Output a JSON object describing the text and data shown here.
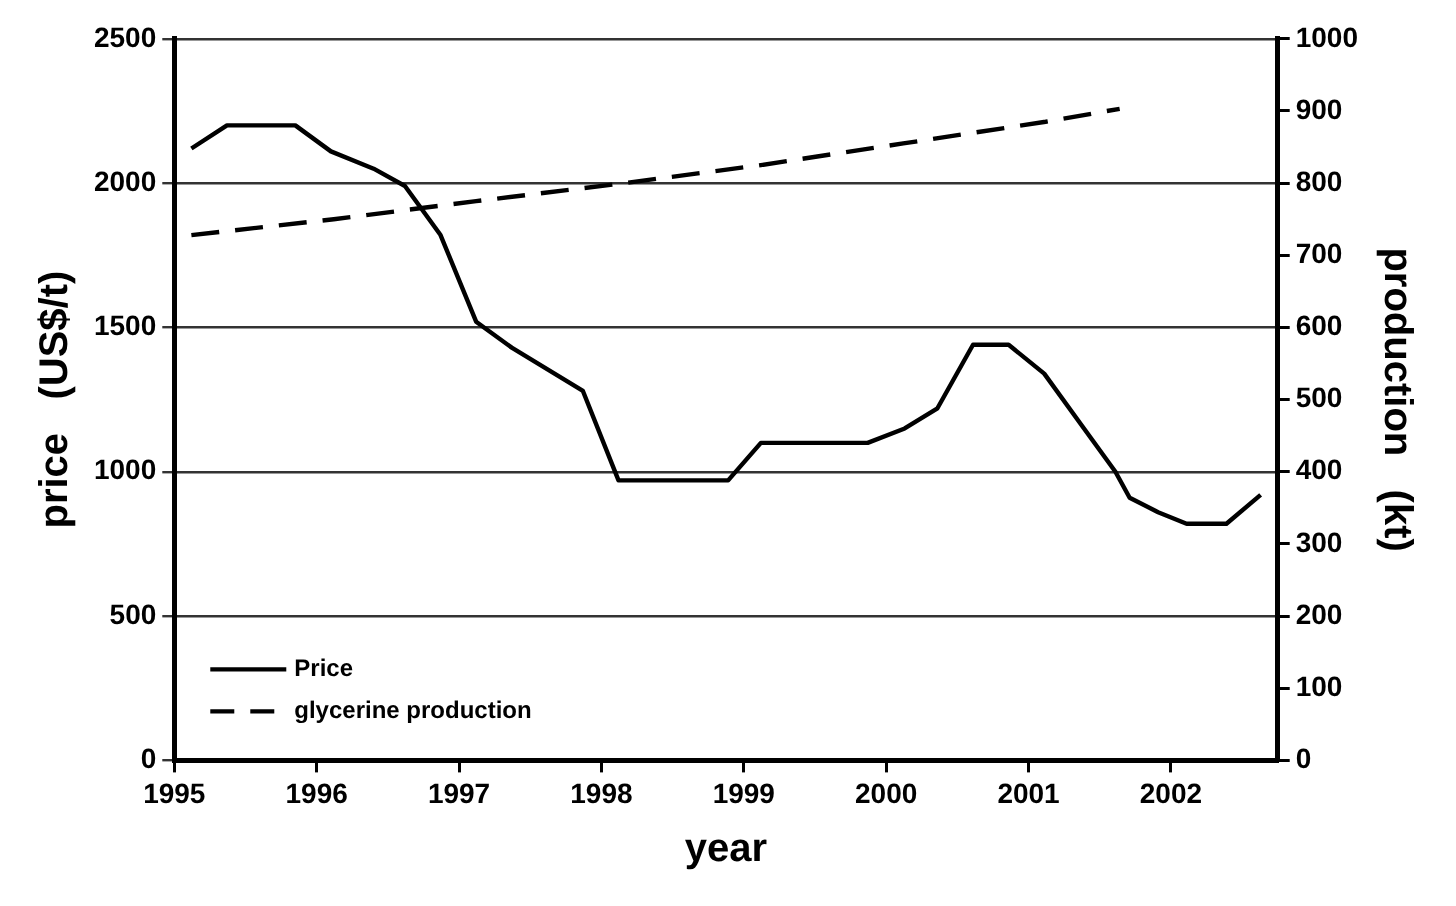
{
  "chart_data": {
    "type": "line",
    "xlabel": "year",
    "ylabel": "price   (US$/t)",
    "y2label": "production   (kt)",
    "xlim": [
      1995,
      2002.75
    ],
    "xticks": [
      1995,
      1996,
      1997,
      1998,
      1999,
      2000,
      2001,
      2002
    ],
    "ylim": [
      0,
      2500
    ],
    "yticks": [
      0,
      500,
      1000,
      1500,
      2000,
      2500
    ],
    "y2lim": [
      0,
      1000
    ],
    "y2ticks": [
      0,
      100,
      200,
      300,
      400,
      500,
      600,
      700,
      800,
      900,
      1000
    ],
    "grid": "y",
    "legend": "bottom left",
    "marker": "none",
    "series": [
      {
        "name": "Price",
        "color": "#000000",
        "line_style": "solid",
        "axis": "y",
        "x": [
          1995.12,
          1995.37,
          1995.85,
          1996.1,
          1996.4,
          1996.62,
          1996.87,
          1997.12,
          1997.37,
          1997.87,
          1998.12,
          1998.89,
          1999.12,
          1999.87,
          2000.13,
          2000.36,
          2000.61,
          2000.86,
          2001.11,
          2001.36,
          2001.61,
          2001.71,
          2001.91,
          2002.11,
          2002.39,
          2002.63
        ],
        "values": [
          2120,
          2200,
          2200,
          2110,
          2050,
          1990,
          1820,
          1520,
          1430,
          1280,
          970,
          970,
          1100,
          1100,
          1150,
          1220,
          1440,
          1440,
          1340,
          1170,
          1000,
          910,
          860,
          820,
          820,
          920
        ]
      },
      {
        "name": "glycerine production",
        "color": "#000000",
        "line_style": "dashed",
        "axis": "y2",
        "x": [
          1995.12,
          1996.12,
          1997.12,
          1998.12,
          1999.12,
          2000.12,
          2001.12,
          2001.64
        ],
        "values": [
          728,
          750,
          775,
          799,
          825,
          855,
          885,
          903
        ]
      }
    ]
  }
}
